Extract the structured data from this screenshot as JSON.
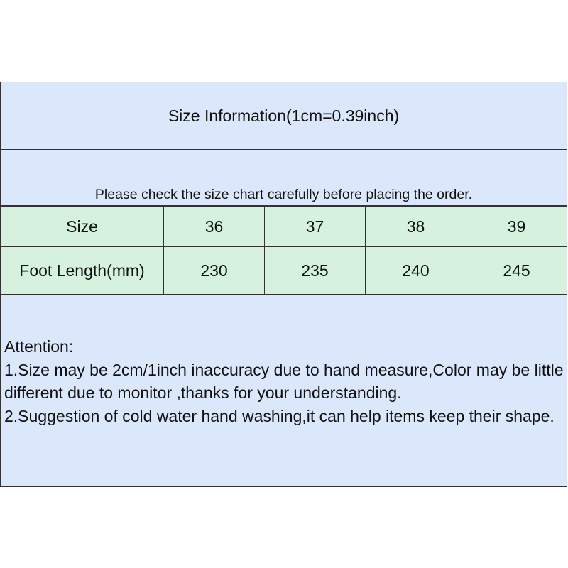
{
  "title": "Size Information(1cm=0.39inch)",
  "note": "Please check the size chart carefully before placing the order.",
  "table": {
    "rows": [
      {
        "label": "Size",
        "values": [
          "36",
          "37",
          "38",
          "39"
        ]
      },
      {
        "label": "Foot Length(mm)",
        "values": [
          "230",
          "235",
          "240",
          "245"
        ]
      }
    ]
  },
  "attention": {
    "heading": "Attention:",
    "lines": [
      "1.Size may be 2cm/1inch inaccuracy due to hand measure,Color may be little different due to monitor ,thanks for your understanding.",
      "2.Suggestion of cold water hand washing,it can help items keep their shape."
    ]
  },
  "colors": {
    "header_bg": "#dbe7fb",
    "table_bg": "#d6f1dd",
    "border": "#333333"
  }
}
